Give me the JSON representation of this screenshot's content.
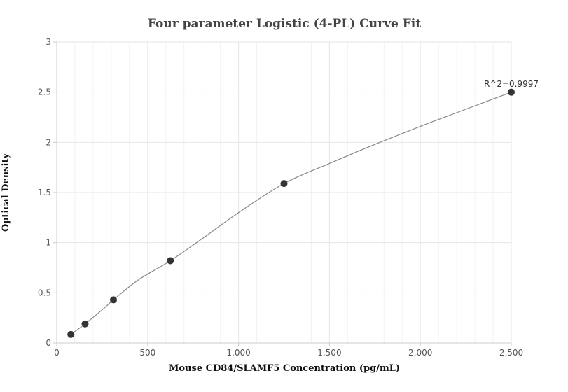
{
  "chart_data": {
    "type": "scatter",
    "title": "Four parameter Logistic (4-PL) Curve Fit",
    "xlabel": "Mouse CD84/SLAMF5 Concentration (pg/mL)",
    "ylabel": "Optical Density",
    "xlim": [
      0,
      2500
    ],
    "ylim": [
      0,
      3
    ],
    "x_ticks": [
      0,
      500,
      1000,
      1500,
      2000,
      2500
    ],
    "x_tick_labels": [
      "0",
      "500",
      "1,000",
      "1,500",
      "2,000",
      "2,500"
    ],
    "y_ticks": [
      0,
      0.5,
      1,
      1.5,
      2,
      2.5,
      3
    ],
    "y_tick_labels": [
      "0",
      "0.5",
      "1",
      "1.5",
      "2",
      "2.5",
      "3"
    ],
    "grid": true,
    "series": [
      {
        "x": [
          78,
          156,
          312,
          625,
          1250,
          2500
        ],
        "y": [
          0.085,
          0.19,
          0.43,
          0.82,
          1.59,
          2.5
        ]
      }
    ],
    "curve": {
      "x": [
        78,
        156,
        250,
        312,
        450,
        625,
        800,
        1000,
        1250,
        1500,
        1750,
        2000,
        2250,
        2500
      ],
      "y": [
        0.085,
        0.19,
        0.33,
        0.43,
        0.63,
        0.82,
        1.04,
        1.3,
        1.59,
        1.79,
        1.98,
        2.16,
        2.33,
        2.5
      ]
    },
    "annotation": "R^2=0.9997",
    "colors": {
      "point": "#333333",
      "curve": "#888888",
      "grid": "#e6e6e6",
      "axis": "#cccccc"
    }
  }
}
